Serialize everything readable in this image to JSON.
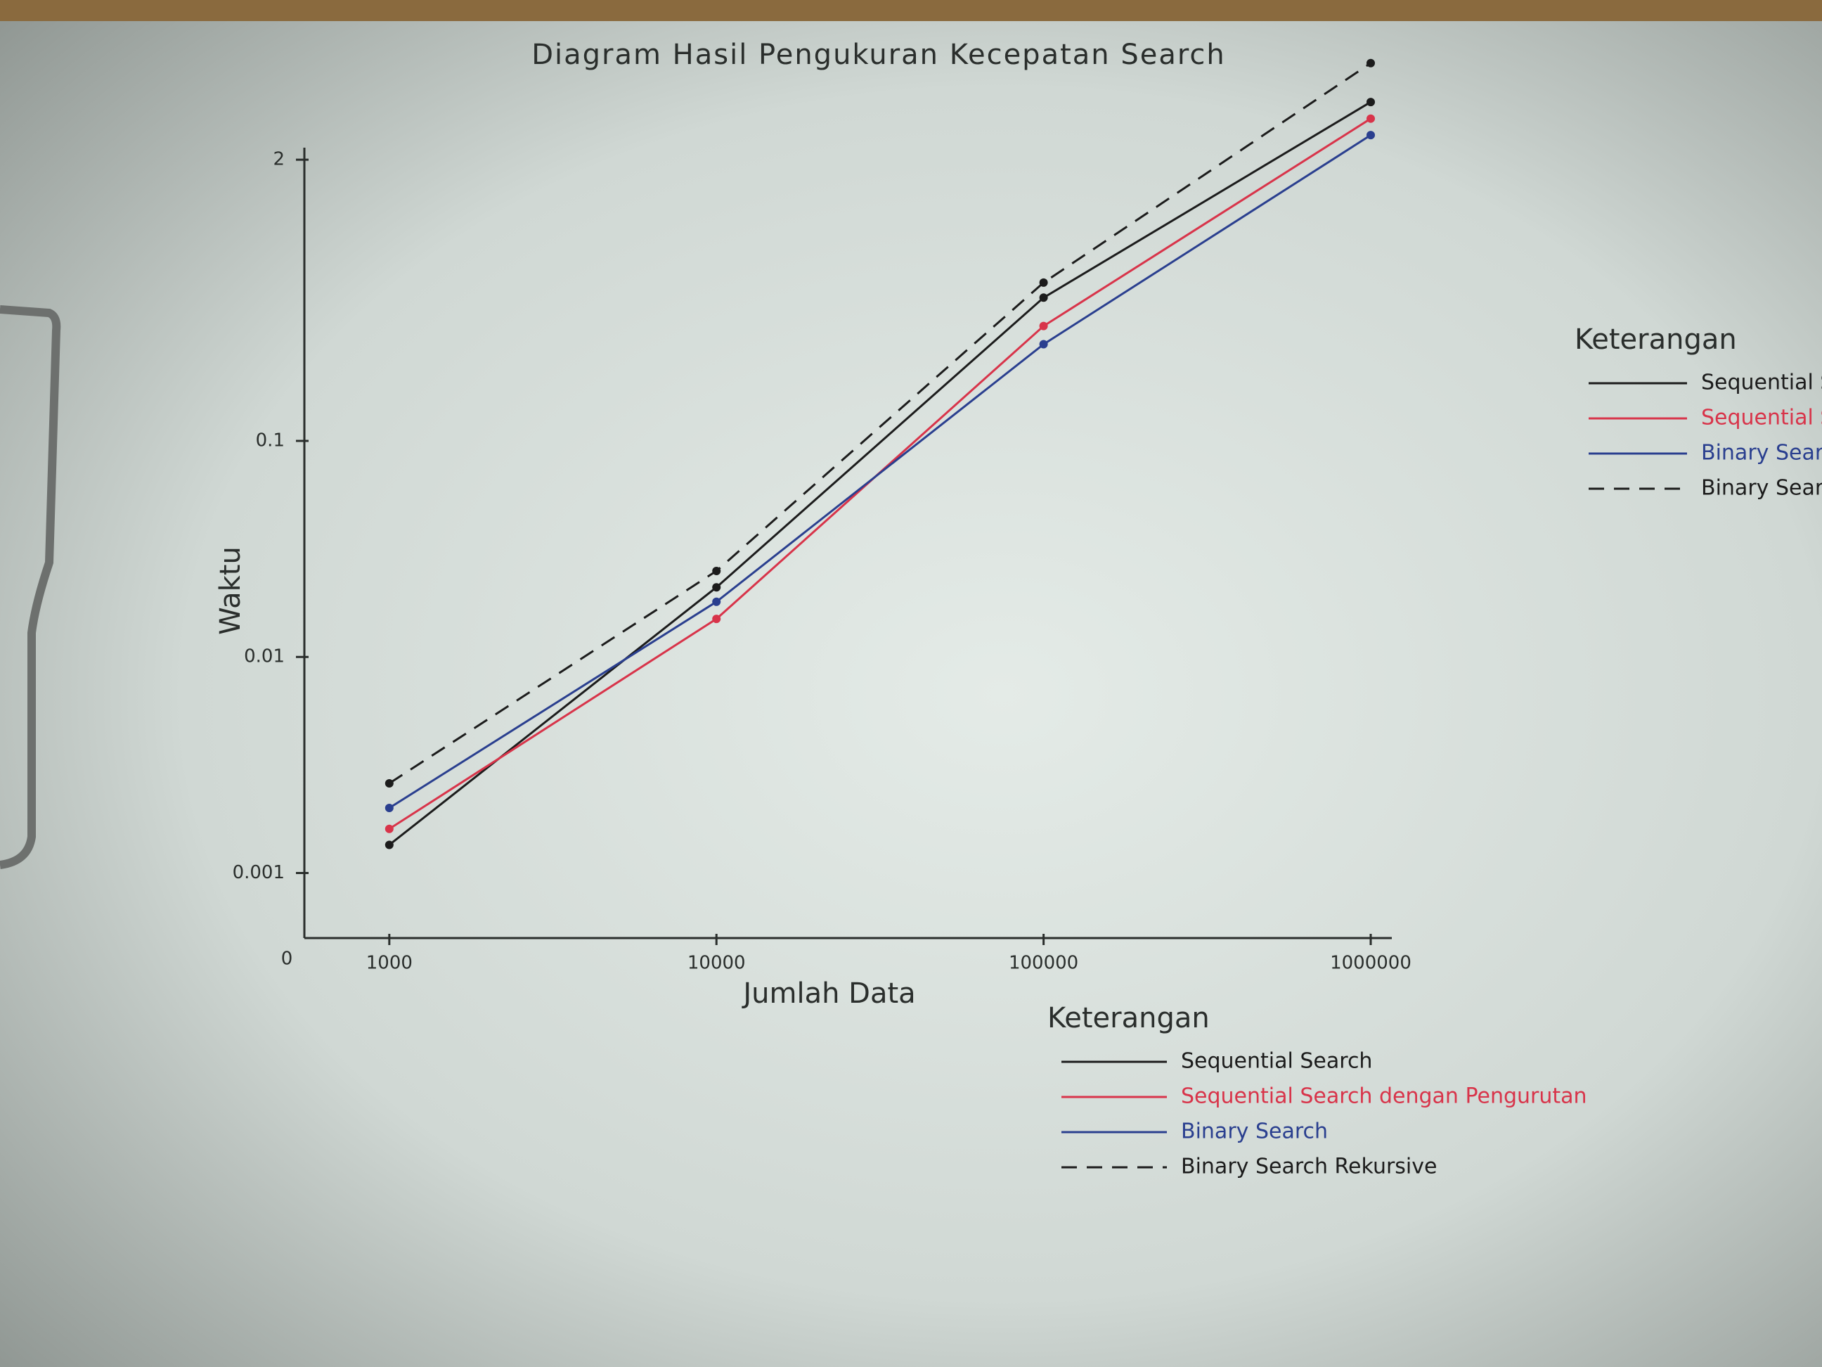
{
  "chart_data": {
    "type": "line",
    "title": "Diagram Hasil Pengukuran Kecepatan Search",
    "x_label": "Jumlah Data",
    "y_label": "Waktu",
    "origin_label": "0",
    "legend_title": "Keterangan",
    "x": [
      1000,
      10000,
      100000,
      1000000
    ],
    "xlim": [
      550,
      1160000
    ],
    "xticks": [
      1000,
      10000,
      100000,
      1000000
    ],
    "x_log": true,
    "ylim": [
      0.0005,
      7
    ],
    "yticks": [
      0.001,
      0.01,
      0.1,
      2
    ],
    "y_log": true,
    "series": [
      {
        "name": "Sequential Search",
        "color": "#1c1c1c",
        "dash": false,
        "values": [
          0.00135,
          0.021,
          0.46,
          3.7
        ]
      },
      {
        "name": "Sequential Search dengan Pengurutan",
        "color": "#d8344a",
        "dash": false,
        "values": [
          0.0016,
          0.015,
          0.34,
          3.1
        ]
      },
      {
        "name": "Binary Search",
        "color": "#2a3f8f",
        "dash": false,
        "values": [
          0.002,
          0.018,
          0.28,
          2.6
        ]
      },
      {
        "name": "Binary Search Rekursive",
        "color": "#1c1c1c",
        "dash": true,
        "values": [
          0.0026,
          0.025,
          0.54,
          5.6
        ]
      }
    ]
  }
}
